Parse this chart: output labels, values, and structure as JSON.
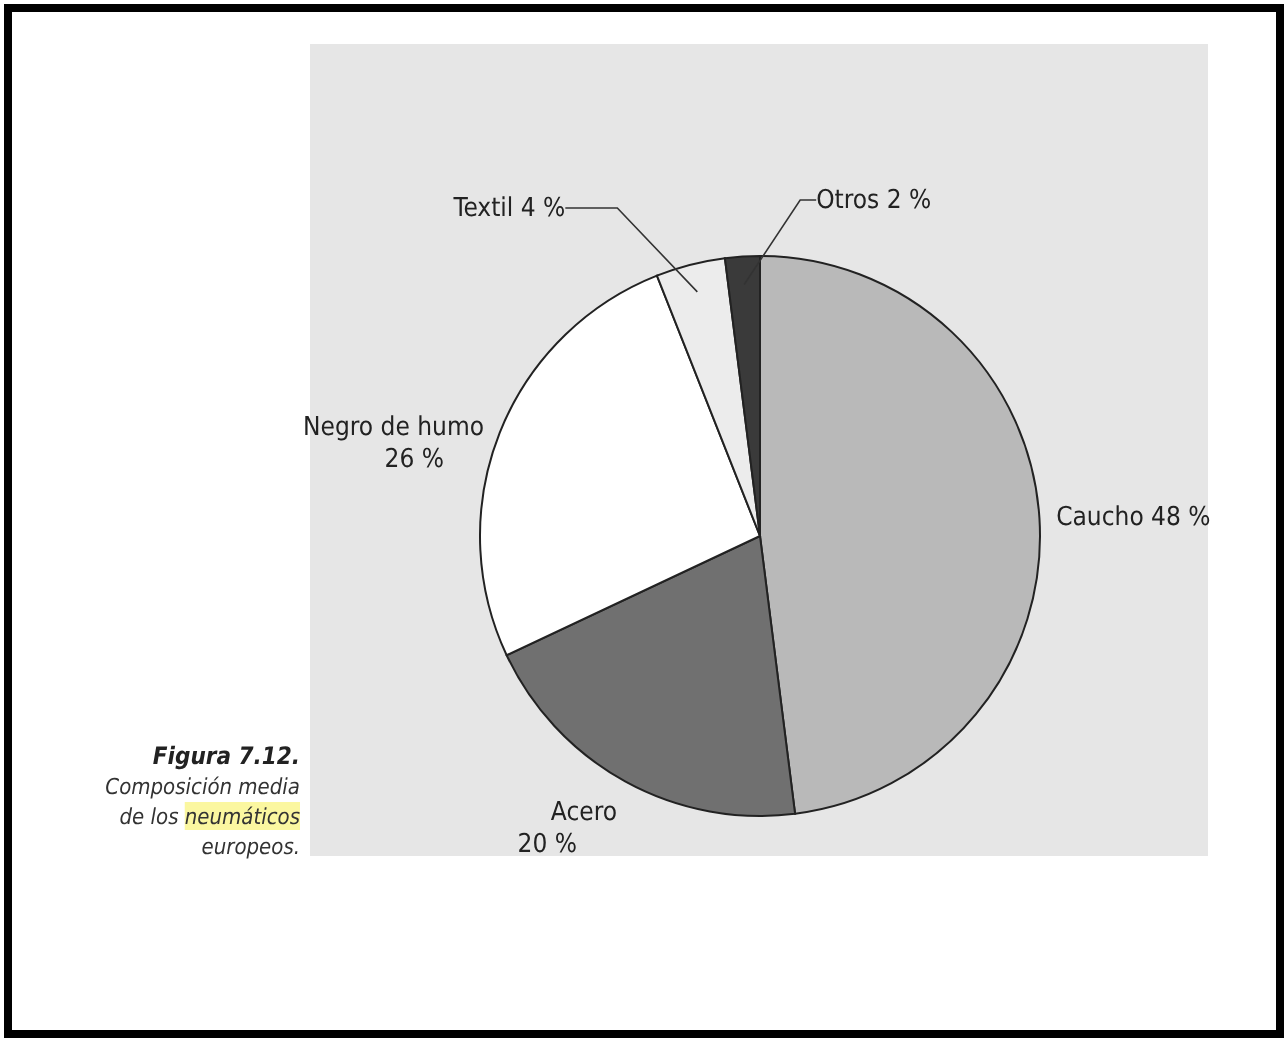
{
  "chart_data": {
    "type": "pie",
    "title": "Figura 7.12.",
    "subtitle": "Composición media de los neumáticos europeos.",
    "categories": [
      "Caucho",
      "Acero",
      "Negro de humo",
      "Textil",
      "Otros"
    ],
    "values": [
      48,
      20,
      26,
      4,
      2
    ],
    "value_labels": [
      "48 %",
      "20 %",
      "26 %",
      "4 %",
      "2 %"
    ],
    "colors": [
      "#b9b9b9",
      "#707070",
      "#ffffff",
      "#ececec",
      "#3a3a3a"
    ]
  }
}
